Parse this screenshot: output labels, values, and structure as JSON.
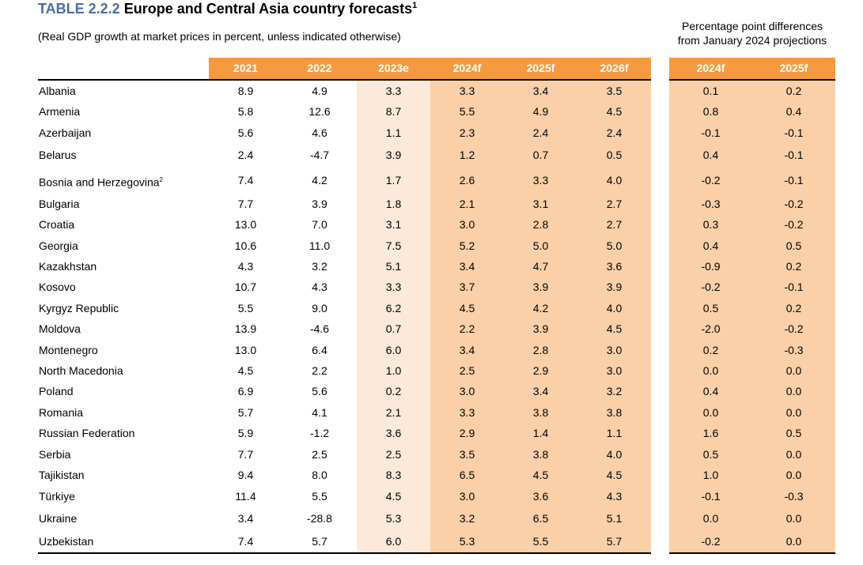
{
  "title": {
    "prefix": "TABLE 2.2.2",
    "text": "Europe and Central Asia country forecasts",
    "footnote": "1"
  },
  "subtitle": "(Real GDP growth at market prices in percent, unless indicated otherwise)",
  "diff_header": {
    "line1": "Percentage point differences",
    "line2": "from January 2024 projections"
  },
  "columns": [
    "2021",
    "2022",
    "2023e",
    "2024f",
    "2025f",
    "2026f"
  ],
  "diff_columns": [
    "2024f",
    "2025f"
  ],
  "rows": [
    {
      "country": "Albania",
      "sup": "",
      "values": [
        "8.9",
        "4.9",
        "3.3",
        "3.3",
        "3.4",
        "3.5"
      ],
      "diffs": [
        "0.1",
        "0.2"
      ]
    },
    {
      "country": "Armenia",
      "sup": "",
      "values": [
        "5.8",
        "12.6",
        "8.7",
        "5.5",
        "4.9",
        "4.5"
      ],
      "diffs": [
        "0.8",
        "0.4"
      ]
    },
    {
      "country": "Azerbaijan",
      "sup": "",
      "values": [
        "5.6",
        "4.6",
        "1.1",
        "2.3",
        "2.4",
        "2.4"
      ],
      "diffs": [
        "-0.1",
        "-0.1"
      ]
    },
    {
      "country": "Belarus",
      "sup": "",
      "values": [
        "2.4",
        "-4.7",
        "3.9",
        "1.2",
        "0.7",
        "0.5"
      ],
      "diffs": [
        "0.4",
        "-0.1"
      ]
    },
    {
      "country": "Bosnia and Herzegovina",
      "sup": "2",
      "values": [
        "7.4",
        "4.2",
        "1.7",
        "2.6",
        "3.3",
        "4.0"
      ],
      "diffs": [
        "-0.2",
        "-0.1"
      ]
    },
    {
      "country": "Bulgaria",
      "sup": "",
      "values": [
        "7.7",
        "3.9",
        "1.8",
        "2.1",
        "3.1",
        "2.7"
      ],
      "diffs": [
        "-0.3",
        "-0.2"
      ]
    },
    {
      "country": "Croatia",
      "sup": "",
      "values": [
        "13.0",
        "7.0",
        "3.1",
        "3.0",
        "2.8",
        "2.7"
      ],
      "diffs": [
        "0.3",
        "-0.2"
      ]
    },
    {
      "country": "Georgia",
      "sup": "",
      "values": [
        "10.6",
        "11.0",
        "7.5",
        "5.2",
        "5.0",
        "5.0"
      ],
      "diffs": [
        "0.4",
        "0.5"
      ]
    },
    {
      "country": "Kazakhstan",
      "sup": "",
      "values": [
        "4.3",
        "3.2",
        "5.1",
        "3.4",
        "4.7",
        "3.6"
      ],
      "diffs": [
        "-0.9",
        "0.2"
      ]
    },
    {
      "country": "Kosovo",
      "sup": "",
      "values": [
        "10.7",
        "4.3",
        "3.3",
        "3.7",
        "3.9",
        "3.9"
      ],
      "diffs": [
        "-0.2",
        "-0.1"
      ]
    },
    {
      "country": "Kyrgyz Republic",
      "sup": "",
      "values": [
        "5.5",
        "9.0",
        "6.2",
        "4.5",
        "4.2",
        "4.0"
      ],
      "diffs": [
        "0.5",
        "0.2"
      ]
    },
    {
      "country": "Moldova",
      "sup": "",
      "values": [
        "13.9",
        "-4.6",
        "0.7",
        "2.2",
        "3.9",
        "4.5"
      ],
      "diffs": [
        "-2.0",
        "-0.2"
      ]
    },
    {
      "country": "Montenegro",
      "sup": "",
      "values": [
        "13.0",
        "6.4",
        "6.0",
        "3.4",
        "2.8",
        "3.0"
      ],
      "diffs": [
        "0.2",
        "-0.3"
      ]
    },
    {
      "country": "North Macedonia",
      "sup": "",
      "values": [
        "4.5",
        "2.2",
        "1.0",
        "2.5",
        "2.9",
        "3.0"
      ],
      "diffs": [
        "0.0",
        "0.0"
      ]
    },
    {
      "country": "Poland",
      "sup": "",
      "values": [
        "6.9",
        "5.6",
        "0.2",
        "3.0",
        "3.4",
        "3.2"
      ],
      "diffs": [
        "0.4",
        "0.0"
      ]
    },
    {
      "country": "Romania",
      "sup": "",
      "values": [
        "5.7",
        "4.1",
        "2.1",
        "3.3",
        "3.8",
        "3.8"
      ],
      "diffs": [
        "0.0",
        "0.0"
      ]
    },
    {
      "country": "Russian Federation",
      "sup": "",
      "values": [
        "5.9",
        "-1.2",
        "3.6",
        "2.9",
        "1.4",
        "1.1"
      ],
      "diffs": [
        "1.6",
        "0.5"
      ]
    },
    {
      "country": "Serbia",
      "sup": "",
      "values": [
        "7.7",
        "2.5",
        "2.5",
        "3.5",
        "3.8",
        "4.0"
      ],
      "diffs": [
        "0.5",
        "0.0"
      ]
    },
    {
      "country": "Tajikistan",
      "sup": "",
      "values": [
        "9.4",
        "8.0",
        "8.3",
        "6.5",
        "4.5",
        "4.5"
      ],
      "diffs": [
        "1.0",
        "0.0"
      ]
    },
    {
      "country": "Türkiye",
      "sup": "",
      "values": [
        "11.4",
        "5.5",
        "4.5",
        "3.0",
        "3.6",
        "4.3"
      ],
      "diffs": [
        "-0.1",
        "-0.3"
      ]
    },
    {
      "country": "Ukraine",
      "sup": "",
      "values": [
        "3.4",
        "-28.8",
        "5.3",
        "3.2",
        "6.5",
        "5.1"
      ],
      "diffs": [
        "0.0",
        "0.0"
      ]
    },
    {
      "country": "Uzbekistan",
      "sup": "",
      "values": [
        "7.4",
        "5.7",
        "6.0",
        "5.3",
        "5.5",
        "5.7"
      ],
      "diffs": [
        "-0.2",
        "0.0"
      ]
    }
  ]
}
